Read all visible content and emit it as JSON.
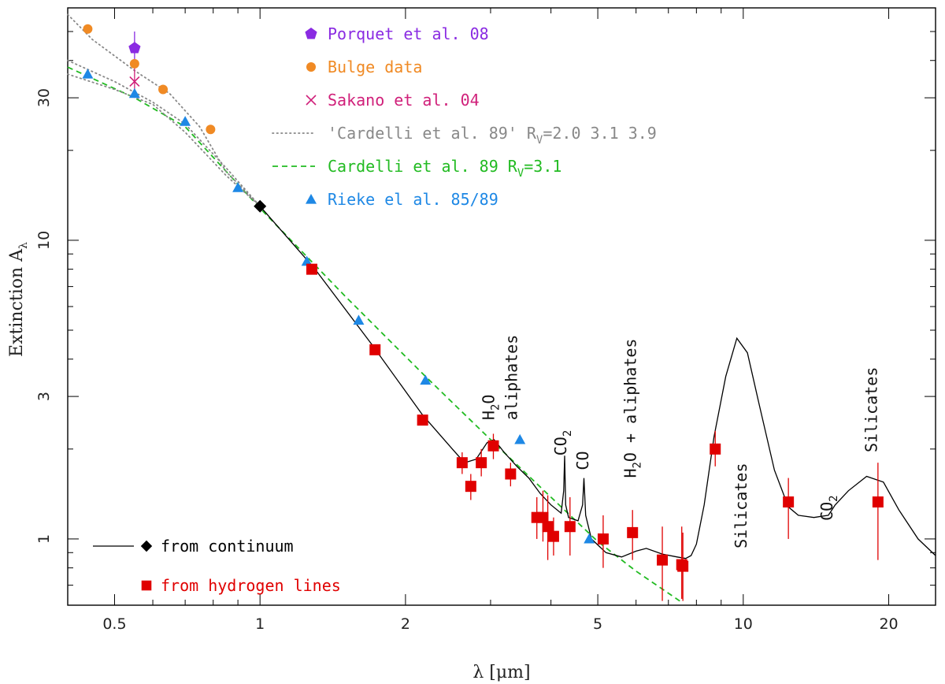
{
  "chart_data": {
    "type": "scatter",
    "title": "",
    "xlabel": "λ [μm]",
    "ylabel": "Extinction A",
    "ylabel_sub": "λ",
    "x_scale": "log",
    "y_scale": "log",
    "xlim": [
      0.4,
      25
    ],
    "ylim": [
      0.6,
      60
    ],
    "x_ticks": [
      {
        "v": 0.5,
        "label": "0.5"
      },
      {
        "v": 1,
        "label": "1"
      },
      {
        "v": 2,
        "label": "2"
      },
      {
        "v": 5,
        "label": "5"
      },
      {
        "v": 10,
        "label": "10"
      },
      {
        "v": 20,
        "label": "20"
      }
    ],
    "y_ticks": [
      {
        "v": 1,
        "label": "1"
      },
      {
        "v": 3,
        "label": "3"
      },
      {
        "v": 10,
        "label": "10"
      },
      {
        "v": 30,
        "label": "30"
      }
    ],
    "legend_top": [
      {
        "key": "porquet",
        "marker": "pentagon",
        "color": "#8a2be2",
        "text": "Porquet et al. 08"
      },
      {
        "key": "bulge",
        "marker": "circle",
        "color": "#f08a24",
        "text": "Bulge data"
      },
      {
        "key": "sakano",
        "marker": "cross",
        "color": "#d0207a",
        "text": "Sakano et al. 04"
      },
      {
        "key": "cardelli_dotted",
        "marker": "dotted",
        "color": "#888888",
        "text": "'Cardelli et al. 89' R",
        "sub": "V",
        "text_after": "=2.0 3.1 3.9"
      },
      {
        "key": "cardelli_dashed",
        "marker": "dashed",
        "color": "#22bb22",
        "text": "Cardelli et al. 89 R",
        "sub": "V",
        "text_after": "=3.1"
      },
      {
        "key": "rieke",
        "marker": "triangle",
        "color": "#1e88e5",
        "text": "Rieke el al. 85/89"
      }
    ],
    "legend_bottom": [
      {
        "key": "continuum",
        "marker": "line-diamond",
        "color": "#000000",
        "text": "from continuum"
      },
      {
        "key": "hlines",
        "marker": "square",
        "color": "#e00000",
        "text": "from hydrogen lines"
      }
    ],
    "annotations": [
      {
        "key": "h2o",
        "text": "H",
        "sub": "2",
        "text_after": "O",
        "x": 3.05,
        "y": 2.5,
        "rotate": -90
      },
      {
        "key": "aliph1",
        "text": "aliphates",
        "x": 3.4,
        "y": 2.5,
        "rotate": -90
      },
      {
        "key": "co2_a",
        "text": "CO",
        "sub": "2",
        "text_after": "",
        "x": 4.3,
        "y": 1.9,
        "rotate": -90
      },
      {
        "key": "co",
        "text": "CO",
        "x": 4.78,
        "y": 1.7,
        "rotate": -90
      },
      {
        "key": "h2o_aliph",
        "text": "H",
        "sub": "2",
        "text_after": "O + aliphates",
        "x": 6.0,
        "y": 1.6,
        "rotate": -90
      },
      {
        "key": "silicates1",
        "text": "Silicates",
        "x": 10.15,
        "y": 0.93,
        "rotate": -90
      },
      {
        "key": "co2_b",
        "text": "CO",
        "sub": "2",
        "text_after": "",
        "x": 15.3,
        "y": 1.15,
        "rotate": -90
      },
      {
        "key": "silicates2",
        "text": "Silicates",
        "x": 18.9,
        "y": 1.95,
        "rotate": -90
      }
    ],
    "series": [
      {
        "key": "porquet",
        "name": "Porquet et al. 08",
        "marker": "pentagon",
        "color": "#8a2be2",
        "points": [
          {
            "x": 0.55,
            "y": 44,
            "ylo": 38,
            "yhi": 50
          }
        ]
      },
      {
        "key": "bulge",
        "name": "Bulge data",
        "marker": "circle",
        "color": "#f08a24",
        "points": [
          {
            "x": 0.44,
            "y": 51
          },
          {
            "x": 0.55,
            "y": 39
          },
          {
            "x": 0.63,
            "y": 32
          },
          {
            "x": 0.79,
            "y": 23.5
          }
        ]
      },
      {
        "key": "sakano",
        "name": "Sakano et al. 04",
        "marker": "cross",
        "color": "#d0207a",
        "points": [
          {
            "x": 0.55,
            "y": 34,
            "ylo": 30,
            "yhi": 38
          }
        ]
      },
      {
        "key": "rieke",
        "name": "Rieke el al. 85/89",
        "marker": "triangle",
        "color": "#1e88e5",
        "points": [
          {
            "x": 0.44,
            "y": 36
          },
          {
            "x": 0.55,
            "y": 31
          },
          {
            "x": 0.7,
            "y": 25
          },
          {
            "x": 0.9,
            "y": 15
          },
          {
            "x": 1.25,
            "y": 8.5
          },
          {
            "x": 1.6,
            "y": 5.4
          },
          {
            "x": 2.2,
            "y": 3.4
          },
          {
            "x": 3.45,
            "y": 2.15
          },
          {
            "x": 4.8,
            "y": 1.0
          }
        ]
      },
      {
        "key": "hlines",
        "name": "from hydrogen lines",
        "marker": "square",
        "color": "#e00000",
        "points": [
          {
            "x": 1.28,
            "y": 8.0
          },
          {
            "x": 1.73,
            "y": 4.3
          },
          {
            "x": 2.17,
            "y": 2.5
          },
          {
            "x": 2.62,
            "y": 1.8,
            "ylo": 1.65,
            "yhi": 1.95
          },
          {
            "x": 2.73,
            "y": 1.5,
            "ylo": 1.35,
            "yhi": 1.65
          },
          {
            "x": 2.87,
            "y": 1.8,
            "ylo": 1.62,
            "yhi": 2.0
          },
          {
            "x": 3.04,
            "y": 2.05,
            "ylo": 1.85,
            "yhi": 2.25
          },
          {
            "x": 3.3,
            "y": 1.65,
            "ylo": 1.5,
            "yhi": 1.8
          },
          {
            "x": 3.74,
            "y": 1.18,
            "ylo": 1.0,
            "yhi": 1.38
          },
          {
            "x": 3.85,
            "y": 1.18,
            "ylo": 0.98,
            "yhi": 1.45
          },
          {
            "x": 3.94,
            "y": 1.1,
            "ylo": 0.85,
            "yhi": 1.4
          },
          {
            "x": 4.05,
            "y": 1.02,
            "ylo": 0.88,
            "yhi": 1.18
          },
          {
            "x": 4.38,
            "y": 1.1,
            "ylo": 0.88,
            "yhi": 1.38
          },
          {
            "x": 5.13,
            "y": 1.0,
            "ylo": 0.8,
            "yhi": 1.2
          },
          {
            "x": 5.9,
            "y": 1.05,
            "ylo": 0.85,
            "yhi": 1.25
          },
          {
            "x": 6.8,
            "y": 0.85,
            "ylo": 0.62,
            "yhi": 1.1
          },
          {
            "x": 7.46,
            "y": 0.82,
            "ylo": 0.63,
            "yhi": 1.1
          },
          {
            "x": 7.5,
            "y": 0.81,
            "ylo": 0.62,
            "yhi": 1.05
          },
          {
            "x": 8.75,
            "y": 2.0,
            "ylo": 1.75,
            "yhi": 2.3
          },
          {
            "x": 12.4,
            "y": 1.33,
            "ylo": 1.0,
            "yhi": 1.6
          },
          {
            "x": 19.0,
            "y": 1.33,
            "ylo": 0.85,
            "yhi": 1.8
          }
        ]
      },
      {
        "key": "continuum_point",
        "name": "from continuum",
        "marker": "diamond",
        "color": "#000000",
        "points": [
          {
            "x": 1.0,
            "y": 13
          }
        ]
      }
    ],
    "lines": [
      {
        "key": "cardelli_dashed",
        "style": "dashed",
        "color": "#22bb22",
        "points": [
          [
            0.4,
            38
          ],
          [
            0.55,
            30
          ],
          [
            0.7,
            24
          ],
          [
            1.0,
            12.8
          ],
          [
            1.5,
            6.5
          ],
          [
            2.2,
            3.5
          ],
          [
            3.0,
            2.15
          ],
          [
            4.0,
            1.38
          ],
          [
            5.0,
            0.98
          ],
          [
            6.0,
            0.78
          ],
          [
            7.5,
            0.61
          ]
        ]
      },
      {
        "key": "cardelli_dotted_1",
        "style": "dotted",
        "color": "#888888",
        "points": [
          [
            0.4,
            57
          ],
          [
            0.45,
            47
          ],
          [
            0.55,
            37
          ],
          [
            0.65,
            31
          ],
          [
            0.75,
            24
          ],
          [
            0.85,
            17
          ],
          [
            1.0,
            13
          ]
        ]
      },
      {
        "key": "cardelli_dotted_2",
        "style": "dotted",
        "color": "#888888",
        "points": [
          [
            0.4,
            40
          ],
          [
            0.5,
            34
          ],
          [
            0.6,
            29
          ],
          [
            0.7,
            24.5
          ],
          [
            0.85,
            17.5
          ],
          [
            1.0,
            13
          ]
        ]
      },
      {
        "key": "cardelli_dotted_3",
        "style": "dotted",
        "color": "#888888",
        "points": [
          [
            0.4,
            36
          ],
          [
            0.5,
            32
          ],
          [
            0.6,
            28.5
          ],
          [
            0.7,
            23
          ],
          [
            0.85,
            16.5
          ],
          [
            1.0,
            13
          ]
        ]
      },
      {
        "key": "continuum_line",
        "style": "solid",
        "color": "#000000",
        "points": [
          [
            1.0,
            13
          ],
          [
            1.3,
            8.0
          ],
          [
            1.7,
            4.5
          ],
          [
            2.17,
            2.6
          ],
          [
            2.5,
            2.0
          ],
          [
            2.65,
            1.8
          ],
          [
            2.8,
            1.85
          ],
          [
            2.95,
            2.1
          ],
          [
            3.05,
            2.15
          ],
          [
            3.2,
            1.95
          ],
          [
            3.4,
            1.75
          ],
          [
            3.6,
            1.6
          ],
          [
            3.8,
            1.42
          ],
          [
            4.0,
            1.3
          ],
          [
            4.2,
            1.22
          ],
          [
            4.25,
            1.45
          ],
          [
            4.27,
            1.9
          ],
          [
            4.29,
            1.3
          ],
          [
            4.35,
            1.18
          ],
          [
            4.55,
            1.15
          ],
          [
            4.65,
            1.3
          ],
          [
            4.68,
            1.6
          ],
          [
            4.72,
            1.2
          ],
          [
            4.85,
            1.0
          ],
          [
            5.2,
            0.9
          ],
          [
            5.6,
            0.87
          ],
          [
            6.0,
            0.91
          ],
          [
            6.3,
            0.93
          ],
          [
            6.8,
            0.89
          ],
          [
            7.3,
            0.87
          ],
          [
            7.6,
            0.86
          ],
          [
            7.8,
            0.88
          ],
          [
            8.0,
            0.96
          ],
          [
            8.3,
            1.3
          ],
          [
            8.7,
            2.2
          ],
          [
            9.2,
            3.5
          ],
          [
            9.7,
            4.7
          ],
          [
            10.2,
            4.2
          ],
          [
            10.8,
            2.8
          ],
          [
            11.6,
            1.7
          ],
          [
            12.4,
            1.28
          ],
          [
            13.0,
            1.2
          ],
          [
            14.0,
            1.18
          ],
          [
            15.0,
            1.2
          ],
          [
            15.5,
            1.3
          ],
          [
            16.5,
            1.45
          ],
          [
            18.0,
            1.62
          ],
          [
            19.5,
            1.55
          ],
          [
            21.0,
            1.25
          ],
          [
            23.0,
            1.0
          ],
          [
            25.0,
            0.88
          ]
        ]
      }
    ]
  }
}
